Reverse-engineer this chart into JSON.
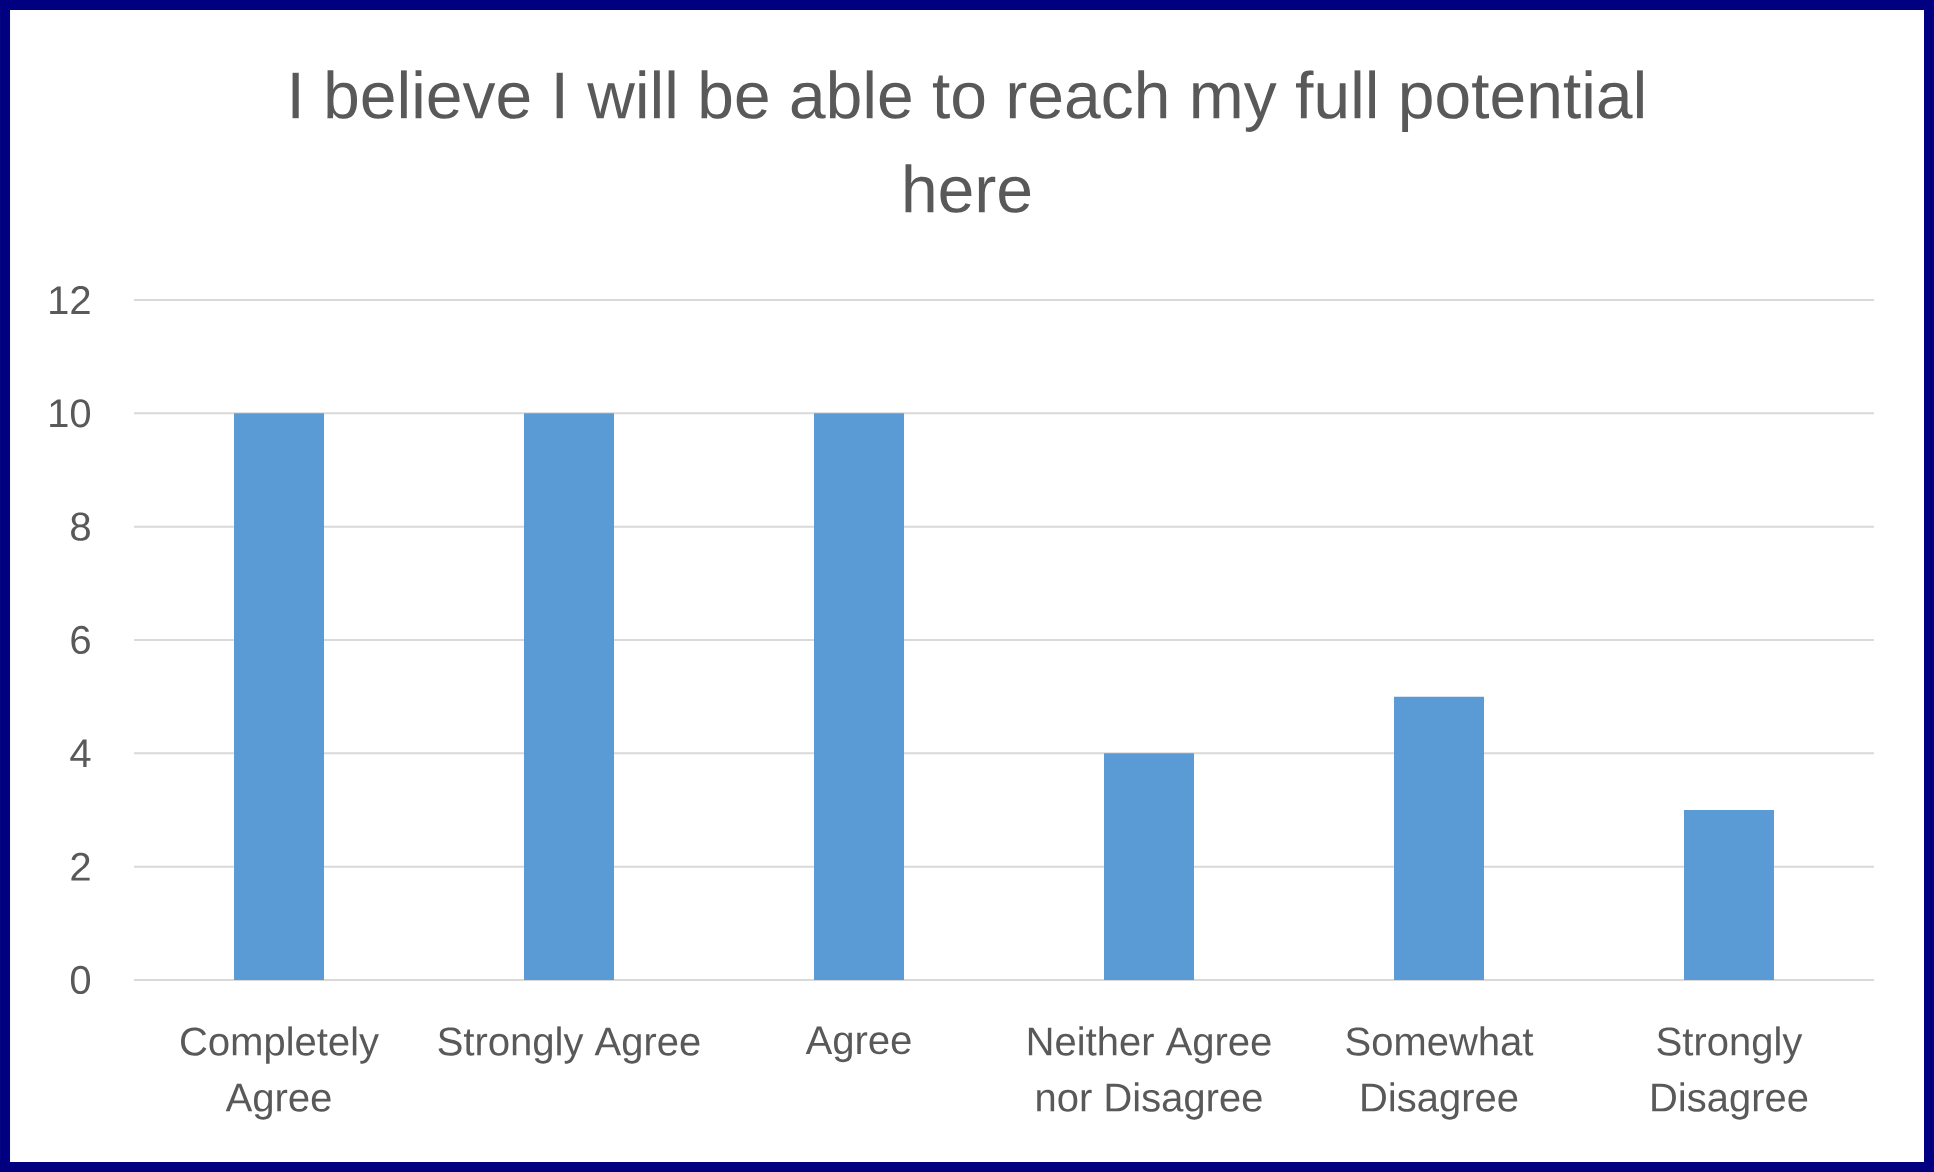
{
  "chart_data": {
    "type": "bar",
    "title": "I believe I will be able to reach my full potential here",
    "categories": [
      "Completely Agree",
      "Strongly Agree",
      "Agree",
      "Neither Agree nor Disagree",
      "Somewhat Disagree",
      "Strongly Disagree"
    ],
    "values": [
      10,
      10,
      10,
      4,
      5,
      3
    ],
    "color": "#5b9bd5",
    "ylim": [
      0,
      12
    ],
    "yticks": [
      0,
      2,
      4,
      6,
      8,
      10,
      12
    ],
    "grid": "y"
  }
}
